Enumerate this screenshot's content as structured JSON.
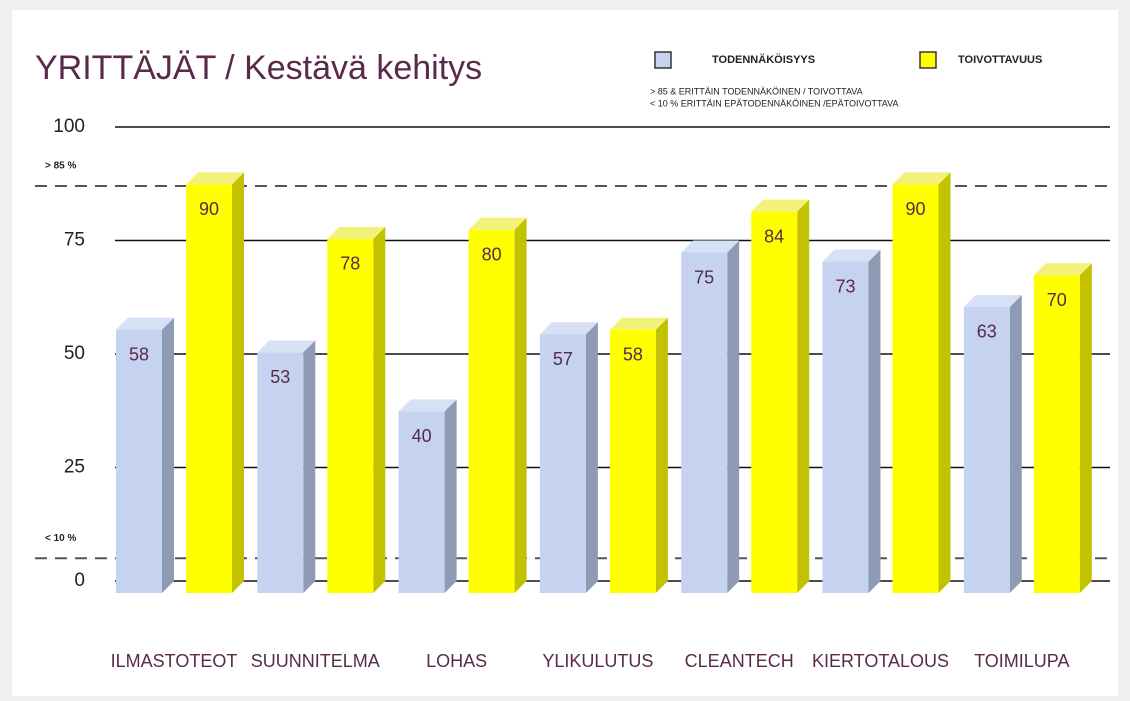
{
  "chart_data": {
    "type": "bar3d",
    "title": "YRITTÄJÄT / Kestävä kehitys",
    "categories": [
      "ILMASTOTEOT",
      "SUUNNITELMA",
      "LOHAS",
      "YLIKULUTUS",
      "CLEANTECH",
      "KIERTOTALOUS",
      "TOIMILUPA"
    ],
    "series": [
      {
        "name": "TODENNÄKÖISYYS",
        "color": "#c5d3f0",
        "values": [
          58,
          53,
          40,
          57,
          75,
          73,
          63
        ]
      },
      {
        "name": "TOIVOTTAVUUS",
        "color": "#ffff00",
        "values": [
          90,
          78,
          80,
          58,
          84,
          90,
          70
        ]
      }
    ],
    "legend_notes": [
      "> 85 & ERITTÄIN TODENNÄKÖINEN / TOIVOTTAVA",
      "< 10 % ERITTÄIN EPÄTODENNÄKÖINEN /EPÄTOIVOTTAVA"
    ],
    "annotations": [
      "> 85 %",
      "< 10 %"
    ],
    "reference_lines": [
      87,
      5
    ],
    "ylim": [
      0,
      100
    ],
    "yticks": [
      0,
      25,
      50,
      75,
      100
    ],
    "grid": true
  }
}
